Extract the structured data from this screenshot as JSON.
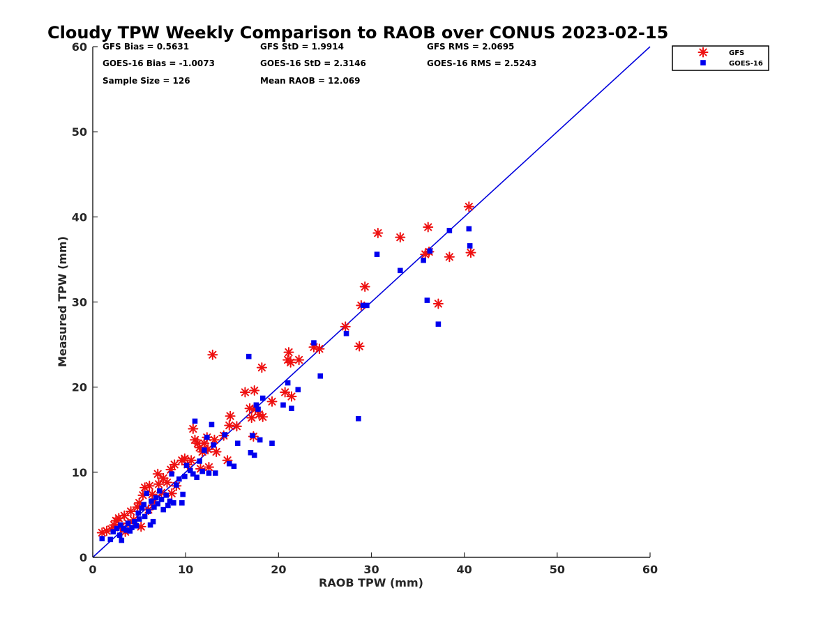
{
  "chart_data": {
    "type": "scatter",
    "title": "Cloudy TPW Weekly Comparison to RAOB over CONUS 2023-02-15",
    "xlabel": "RAOB TPW (mm)",
    "ylabel": "Measured TPW (mm)",
    "xlim": [
      0,
      60
    ],
    "ylim": [
      0,
      60
    ],
    "xticks": [
      "0",
      "10",
      "20",
      "30",
      "40",
      "50",
      "60"
    ],
    "yticks": [
      "0",
      "10",
      "20",
      "30",
      "40",
      "50",
      "60"
    ],
    "grid": false,
    "legend_position": "outside top-right",
    "reference_line": {
      "x": [
        0,
        60
      ],
      "y": [
        0,
        60
      ],
      "color": "#0000dd"
    },
    "stats": {
      "gfs_bias": "GFS Bias = 0.5631",
      "goes_bias": "GOES-16 Bias = -1.0073",
      "sample_size": "Sample Size = 126",
      "gfs_std": "GFS StD = 1.9914",
      "goes_std": "GOES-16 StD = 2.3146",
      "mean_raob": "Mean RAOB = 12.069",
      "gfs_rms": "GFS RMS = 2.0695",
      "goes_rms": "GOES-16 RMS = 2.5243"
    },
    "series": [
      {
        "name": "GFS",
        "marker": "asterisk",
        "color": "#ee1111",
        "points": [
          [
            1.0,
            2.9
          ],
          [
            1.5,
            3.1
          ],
          [
            2.0,
            3.3
          ],
          [
            2.3,
            3.8
          ],
          [
            2.5,
            4.3
          ],
          [
            2.8,
            4.6
          ],
          [
            3.0,
            3.5
          ],
          [
            3.4,
            4.9
          ],
          [
            3.5,
            3.0
          ],
          [
            3.8,
            4.0
          ],
          [
            4.1,
            5.4
          ],
          [
            4.4,
            4.4
          ],
          [
            4.8,
            5.9
          ],
          [
            5.0,
            6.4
          ],
          [
            5.2,
            3.6
          ],
          [
            5.4,
            7.3
          ],
          [
            5.6,
            8.2
          ],
          [
            6.0,
            5.6
          ],
          [
            6.1,
            8.4
          ],
          [
            6.4,
            7.4
          ],
          [
            6.6,
            6.5
          ],
          [
            7.0,
            9.8
          ],
          [
            7.1,
            8.6
          ],
          [
            7.4,
            7.6
          ],
          [
            7.6,
            9.3
          ],
          [
            8.0,
            8.8
          ],
          [
            8.4,
            10.3
          ],
          [
            8.5,
            7.5
          ],
          [
            8.8,
            10.9
          ],
          [
            9.0,
            8.4
          ],
          [
            9.6,
            11.4
          ],
          [
            9.9,
            11.6
          ],
          [
            10.2,
            10.9
          ],
          [
            10.6,
            11.4
          ],
          [
            10.8,
            15.1
          ],
          [
            11.0,
            13.8
          ],
          [
            11.3,
            13.4
          ],
          [
            11.5,
            12.9
          ],
          [
            11.6,
            10.4
          ],
          [
            11.8,
            12.4
          ],
          [
            12.0,
            13.4
          ],
          [
            12.3,
            14.1
          ],
          [
            12.4,
            12.7
          ],
          [
            12.5,
            10.6
          ],
          [
            12.9,
            23.8
          ],
          [
            13.1,
            13.8
          ],
          [
            13.3,
            12.4
          ],
          [
            14.1,
            14.3
          ],
          [
            14.5,
            11.4
          ],
          [
            14.7,
            15.5
          ],
          [
            14.8,
            16.6
          ],
          [
            15.5,
            15.4
          ],
          [
            16.4,
            19.4
          ],
          [
            16.9,
            17.5
          ],
          [
            17.1,
            16.4
          ],
          [
            17.3,
            14.2
          ],
          [
            17.4,
            19.6
          ],
          [
            17.5,
            17.4
          ],
          [
            17.9,
            16.8
          ],
          [
            18.2,
            22.3
          ],
          [
            18.3,
            16.5
          ],
          [
            19.3,
            18.3
          ],
          [
            20.7,
            19.4
          ],
          [
            21.0,
            23.2
          ],
          [
            21.1,
            24.1
          ],
          [
            21.3,
            22.9
          ],
          [
            21.4,
            18.9
          ],
          [
            22.2,
            23.2
          ],
          [
            23.8,
            24.7
          ],
          [
            24.4,
            24.5
          ],
          [
            27.2,
            27.1
          ],
          [
            28.7,
            24.8
          ],
          [
            28.9,
            29.6
          ],
          [
            29.3,
            31.8
          ],
          [
            30.7,
            38.1
          ],
          [
            33.1,
            37.6
          ],
          [
            35.8,
            35.6
          ],
          [
            36.1,
            38.8
          ],
          [
            36.2,
            35.9
          ],
          [
            37.2,
            29.8
          ],
          [
            38.4,
            35.3
          ],
          [
            40.5,
            41.2
          ],
          [
            40.7,
            35.8
          ]
        ]
      },
      {
        "name": "GOES-16",
        "marker": "square",
        "color": "#0000ee",
        "points": [
          [
            1.0,
            2.2
          ],
          [
            1.9,
            2.1
          ],
          [
            2.2,
            3.0
          ],
          [
            2.6,
            3.4
          ],
          [
            2.9,
            2.6
          ],
          [
            3.0,
            3.8
          ],
          [
            3.1,
            2.0
          ],
          [
            3.3,
            3.4
          ],
          [
            3.6,
            3.2
          ],
          [
            3.8,
            4.0
          ],
          [
            4.0,
            3.1
          ],
          [
            4.2,
            3.5
          ],
          [
            4.5,
            4.2
          ],
          [
            4.7,
            3.7
          ],
          [
            4.9,
            5.2
          ],
          [
            5.0,
            4.5
          ],
          [
            5.3,
            5.8
          ],
          [
            5.5,
            6.2
          ],
          [
            5.6,
            4.8
          ],
          [
            5.8,
            7.5
          ],
          [
            6.0,
            5.4
          ],
          [
            6.2,
            3.8
          ],
          [
            6.3,
            6.6
          ],
          [
            6.5,
            4.2
          ],
          [
            6.6,
            5.9
          ],
          [
            6.8,
            7.0
          ],
          [
            7.0,
            6.3
          ],
          [
            7.2,
            7.8
          ],
          [
            7.4,
            6.8
          ],
          [
            7.6,
            5.6
          ],
          [
            7.9,
            7.3
          ],
          [
            8.1,
            6.1
          ],
          [
            8.3,
            6.6
          ],
          [
            8.5,
            9.8
          ],
          [
            8.7,
            6.4
          ],
          [
            9.0,
            8.5
          ],
          [
            9.3,
            9.2
          ],
          [
            9.6,
            6.4
          ],
          [
            9.7,
            7.4
          ],
          [
            9.9,
            9.5
          ],
          [
            10.1,
            10.8
          ],
          [
            10.5,
            10.2
          ],
          [
            10.8,
            9.8
          ],
          [
            11.0,
            16.0
          ],
          [
            11.2,
            9.4
          ],
          [
            11.5,
            11.3
          ],
          [
            11.8,
            10.1
          ],
          [
            12.0,
            12.6
          ],
          [
            12.3,
            14.1
          ],
          [
            12.5,
            9.9
          ],
          [
            12.8,
            15.6
          ],
          [
            13.0,
            13.2
          ],
          [
            13.2,
            9.9
          ],
          [
            14.2,
            14.4
          ],
          [
            14.7,
            11.0
          ],
          [
            15.2,
            10.7
          ],
          [
            15.6,
            13.4
          ],
          [
            16.8,
            23.6
          ],
          [
            17.0,
            12.3
          ],
          [
            17.2,
            14.3
          ],
          [
            17.4,
            12.0
          ],
          [
            17.6,
            17.9
          ],
          [
            17.8,
            17.4
          ],
          [
            18.0,
            13.8
          ],
          [
            18.3,
            18.7
          ],
          [
            19.3,
            13.4
          ],
          [
            20.5,
            17.9
          ],
          [
            21.0,
            20.5
          ],
          [
            21.4,
            17.5
          ],
          [
            22.1,
            19.7
          ],
          [
            23.8,
            25.2
          ],
          [
            24.5,
            21.3
          ],
          [
            27.3,
            26.3
          ],
          [
            28.6,
            16.3
          ],
          [
            29.1,
            29.6
          ],
          [
            29.5,
            29.6
          ],
          [
            30.6,
            35.6
          ],
          [
            33.1,
            33.7
          ],
          [
            35.6,
            34.9
          ],
          [
            36.0,
            30.2
          ],
          [
            36.3,
            36.0
          ],
          [
            37.2,
            27.4
          ],
          [
            38.4,
            38.4
          ],
          [
            40.5,
            38.6
          ],
          [
            40.6,
            36.6
          ]
        ]
      }
    ]
  }
}
